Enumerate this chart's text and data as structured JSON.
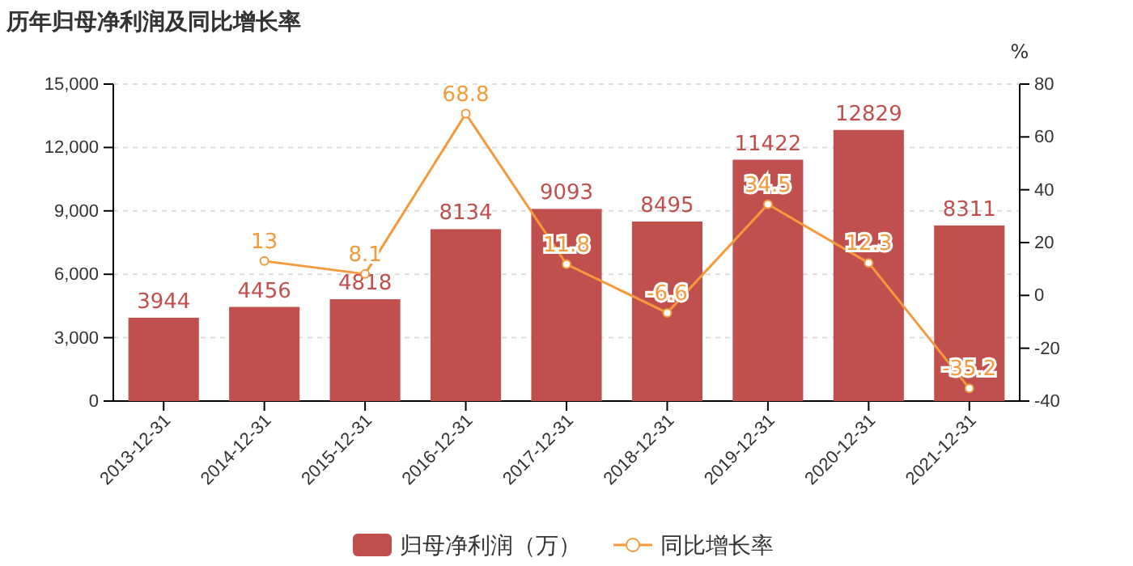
{
  "chart_data": {
    "type": "bar",
    "title": "历年归母净利润及同比增长率",
    "y2label": "%",
    "categories": [
      "2013-12-31",
      "2014-12-31",
      "2015-12-31",
      "2016-12-31",
      "2017-12-31",
      "2018-12-31",
      "2019-12-31",
      "2020-12-31",
      "2021-12-31"
    ],
    "series": [
      {
        "name": "归母净利润（万）",
        "color": "#c0504d",
        "values": [
          3944,
          4456,
          4818,
          8134,
          9093,
          8495,
          11422,
          12829,
          8311
        ]
      },
      {
        "name": "同比增长率",
        "type": "line",
        "axis": "y2",
        "color": "#f59a3c",
        "marker": "circle",
        "values": [
          null,
          13,
          8.1,
          68.8,
          11.8,
          -6.6,
          34.5,
          12.3,
          -35.2
        ]
      }
    ],
    "ylim": [
      0,
      15000
    ],
    "yticks": [
      {
        "value": 0,
        "label": "0"
      },
      {
        "value": 3000,
        "label": "3,000"
      },
      {
        "value": 6000,
        "label": "6,000"
      },
      {
        "value": 9000,
        "label": "9,000"
      },
      {
        "value": 12000,
        "label": "12,000"
      },
      {
        "value": 15000,
        "label": "15,000"
      }
    ],
    "y2lim": [
      -40,
      80
    ],
    "y2ticks": [
      -40,
      -20,
      0,
      20,
      40,
      60,
      80
    ],
    "grid": "y",
    "legend": "bottom",
    "data_labels": true
  }
}
